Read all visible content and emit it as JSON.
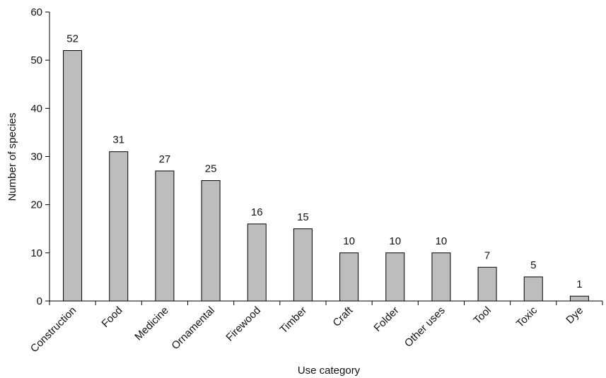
{
  "chart_data": {
    "type": "bar",
    "categories": [
      "Construction",
      "Food",
      "Medicine",
      "Ornamental",
      "Firewood",
      "Timber",
      "Craft",
      "Folder",
      "Other uses",
      "Tool",
      "Toxic",
      "Dye"
    ],
    "values": [
      52,
      31,
      27,
      25,
      16,
      15,
      10,
      10,
      10,
      7,
      5,
      1
    ],
    "data_labels": [
      "52",
      "31",
      "27",
      "25",
      "16",
      "15",
      "10",
      "10",
      "10",
      "7",
      "5",
      "1"
    ],
    "title": "",
    "xlabel": "Use category",
    "ylabel": "Number of species",
    "ylim": [
      0,
      60
    ],
    "yticks": [
      0,
      10,
      20,
      30,
      40,
      50,
      60
    ],
    "ytick_labels": [
      "0",
      "10",
      "20",
      "30",
      "40",
      "50",
      "60"
    ],
    "grid": false,
    "legend": "none",
    "colors": {
      "bar_fill": "#bdbdbd",
      "bar_stroke": "#000000",
      "axis": "#000000"
    }
  }
}
